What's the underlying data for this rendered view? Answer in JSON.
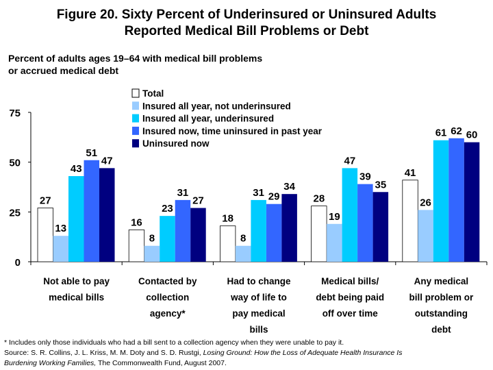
{
  "chart_data": {
    "type": "bar",
    "title": "Figure 20. Sixty Percent of Underinsured or Uninsured Adults Reported Medical Bill Problems or Debt",
    "title_lines": [
      "Figure 20. Sixty Percent of Underinsured or Uninsured Adults",
      "Reported Medical Bill Problems or Debt"
    ],
    "subtitle_lines": [
      "Percent of adults ages 19–64 with medical bill problems",
      "or accrued medical debt"
    ],
    "categories": [
      [
        "Not able to pay",
        "medical bills"
      ],
      [
        "Contacted by",
        "collection",
        "agency*"
      ],
      [
        "Had to change",
        "way of life to",
        "pay medical",
        "bills"
      ],
      [
        "Medical bills/",
        "debt being paid",
        "off over time"
      ],
      [
        "Any medical",
        "bill problem or",
        "outstanding",
        "debt"
      ]
    ],
    "series": [
      {
        "name": "Total",
        "color": "#ffffff",
        "values": [
          27,
          16,
          18,
          28,
          41
        ]
      },
      {
        "name": "Insured all year, not underinsured",
        "color": "#99ccff",
        "values": [
          13,
          8,
          8,
          19,
          26
        ]
      },
      {
        "name": "Insured all year, underinsured",
        "color": "#00ccff",
        "values": [
          43,
          23,
          31,
          47,
          61
        ]
      },
      {
        "name": "Insured now, time uninsured in past year",
        "color": "#3366ff",
        "values": [
          51,
          31,
          29,
          39,
          62
        ]
      },
      {
        "name": "Uninsured now",
        "color": "#000080",
        "values": [
          47,
          27,
          34,
          35,
          60
        ]
      }
    ],
    "ylim": [
      0,
      75
    ],
    "yticks": [
      0,
      25,
      50,
      75
    ],
    "grid": false,
    "legend_position": "top-center"
  },
  "footnotes": {
    "note": "* Includes only those individuals who had a bill sent to a collection agency when they were unable to pay it.",
    "source_prefix": "Source: S. R. Collins, J. L. Kriss, M. M. Doty and S. D. Rustgi, ",
    "source_title_1": "Losing Ground: How the Loss of Adequate Health Insurance Is",
    "source_title_2": "Burdening Working Families,",
    "source_suffix": " The Commonwealth Fund, August 2007."
  }
}
